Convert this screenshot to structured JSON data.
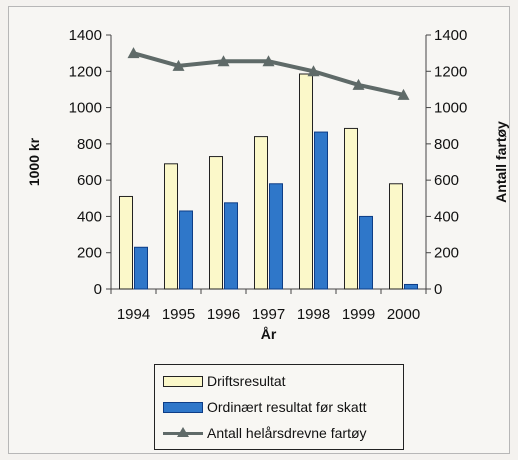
{
  "chart_data": {
    "type": "bar",
    "categories": [
      "1994",
      "1995",
      "1996",
      "1997",
      "1998",
      "1999",
      "2000"
    ],
    "series": [
      {
        "name": "Driftsresultat",
        "kind": "bar",
        "axis": "left",
        "values": [
          510,
          690,
          730,
          840,
          1185,
          885,
          580
        ],
        "color": "#fbf8c9"
      },
      {
        "name": "Ordinært resultat før skatt",
        "kind": "bar",
        "axis": "left",
        "values": [
          230,
          430,
          475,
          580,
          865,
          400,
          25
        ],
        "color": "#2f77c9"
      },
      {
        "name": "Antall helårsdrevne fartøy",
        "kind": "line",
        "axis": "right",
        "values": [
          1300,
          1230,
          1255,
          1255,
          1200,
          1125,
          1070
        ],
        "color": "#5f6a68"
      }
    ],
    "xlabel": "År",
    "ylabel": "1000 kr",
    "y2label": "Antall fartøy",
    "ylim": [
      0,
      1400
    ],
    "y2lim": [
      0,
      1400
    ],
    "yticks": [
      "0",
      "200",
      "400",
      "600",
      "800",
      "1000",
      "1200",
      "1400"
    ],
    "y2ticks": [
      "0",
      "200",
      "400",
      "600",
      "800",
      "1000",
      "1200",
      "1400"
    ],
    "legend_position": "bottom",
    "grid": false
  }
}
